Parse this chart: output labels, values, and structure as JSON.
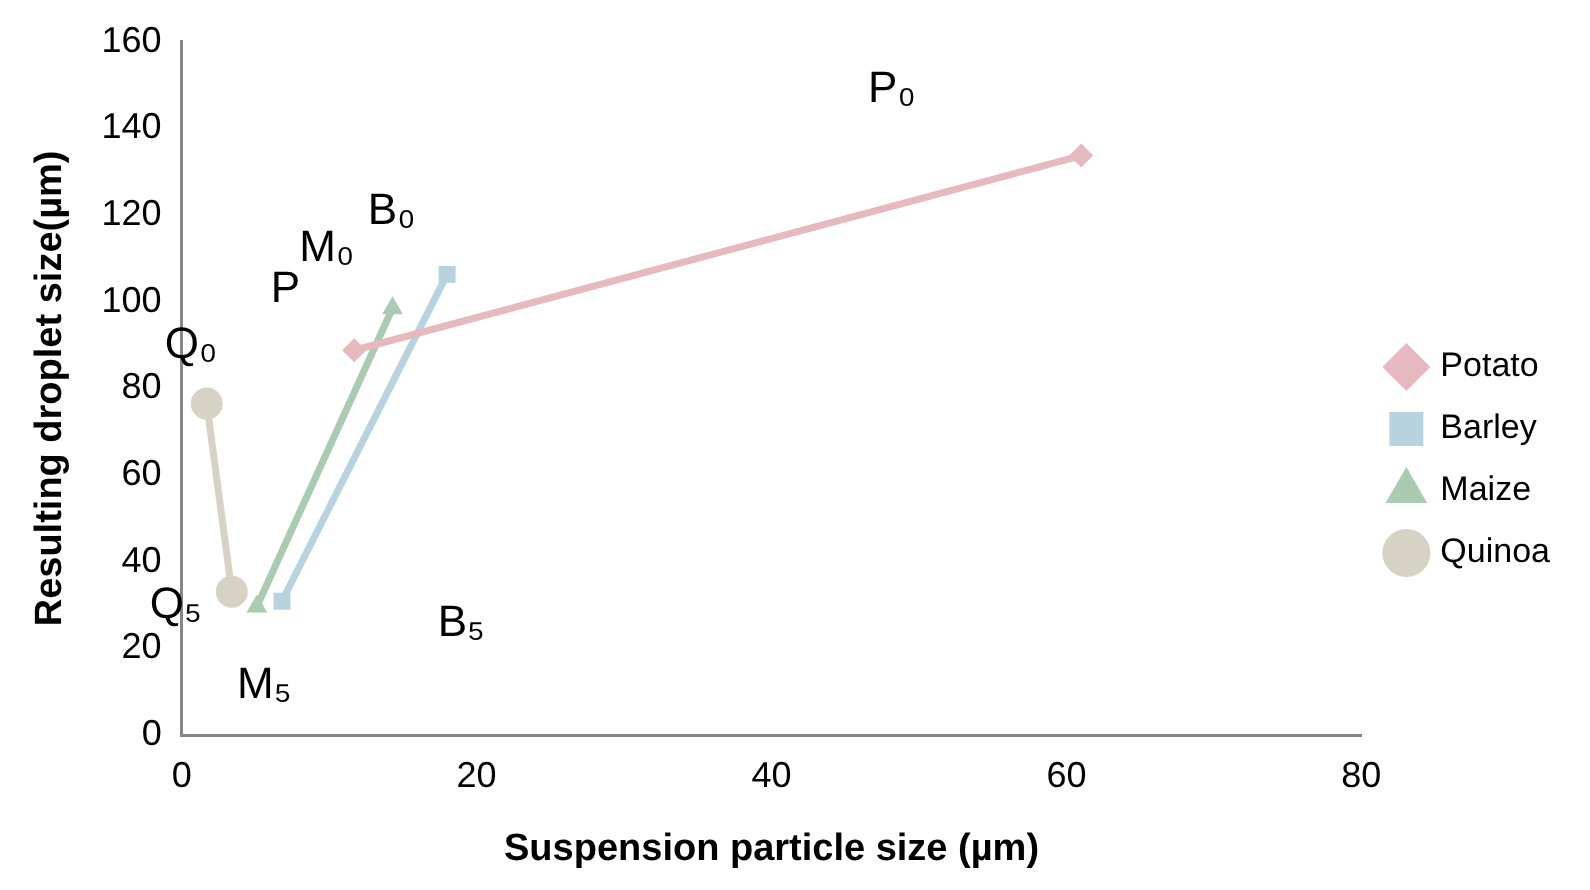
{
  "chart_data": {
    "type": "line",
    "xlabel": "Suspension particle size (µm)",
    "ylabel": "Resulting droplet size(µm)",
    "xlim": [
      0,
      80
    ],
    "xticks": [
      0,
      20,
      40,
      60,
      80
    ],
    "ylim": [
      0,
      160
    ],
    "yticks": [
      0,
      20,
      40,
      60,
      80,
      100,
      120,
      140,
      160
    ],
    "grid": false,
    "legend": "right",
    "series": [
      {
        "name": "Potato",
        "color": "#e6b9bf",
        "marker": "diamond",
        "x": [
          61,
          11.7
        ],
        "values": [
          133.7,
          88.8
        ]
      },
      {
        "name": "Barley",
        "color": "#b7d3df",
        "marker": "square",
        "x": [
          18,
          6.8
        ],
        "values": [
          106.3,
          30.9
        ]
      },
      {
        "name": "Maize",
        "color": "#a9cbb1",
        "marker": "triangle",
        "x": [
          14.3,
          5.1
        ],
        "values": [
          98.5,
          29.7
        ]
      },
      {
        "name": "Quinoa",
        "color": "#d6d3c4",
        "marker": "circle",
        "x": [
          1.7,
          3.4
        ],
        "values": [
          76.5,
          33.1
        ]
      }
    ],
    "annotations": [
      "P₀",
      "M₀",
      "B₀",
      "P",
      "Q₀",
      "Q₅",
      "M₅",
      "B₅"
    ]
  }
}
